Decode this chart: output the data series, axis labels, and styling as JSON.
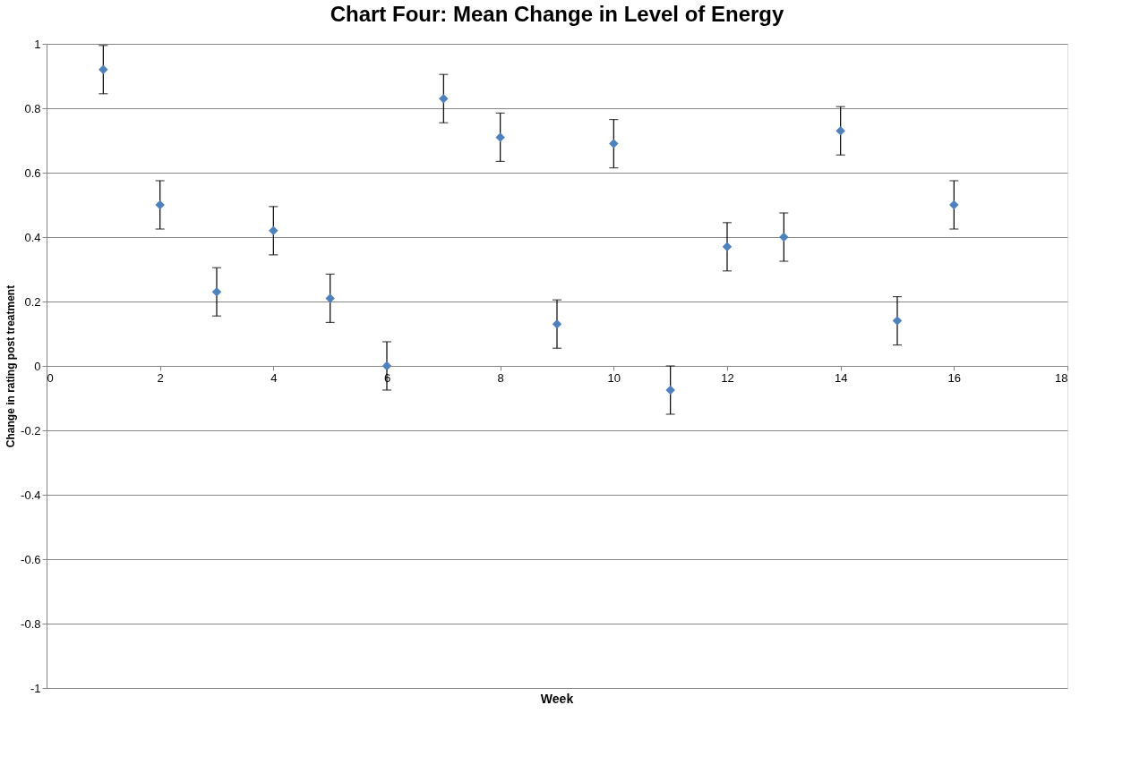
{
  "chart_data": {
    "type": "scatter",
    "title": "Chart Four: Mean Change in Level of Energy",
    "xlabel": "Week",
    "ylabel": "Change in rating post treatment",
    "x": [
      1,
      2,
      3,
      4,
      5,
      6,
      7,
      8,
      9,
      10,
      11,
      12,
      13,
      14,
      15,
      16
    ],
    "series": [
      {
        "color": "#4f81bd",
        "values": [
          0.92,
          0.5,
          0.23,
          0.42,
          0.21,
          0,
          0.83,
          0.71,
          0.13,
          0.69,
          -0.075,
          0.37,
          0.4,
          0.73,
          0.14,
          0.5
        ],
        "errors": [
          0.075,
          0.075,
          0.075,
          0.075,
          0.075,
          0.075,
          0.075,
          0.075,
          0.075,
          0.075,
          0.075,
          0.075,
          0.075,
          0.075,
          0.075,
          0.075
        ]
      }
    ],
    "xlim": [
      0,
      18
    ],
    "xticks": [
      0,
      2,
      4,
      6,
      8,
      10,
      12,
      14,
      16,
      18
    ],
    "ylim": [
      -1,
      1
    ],
    "yticks": [
      -1,
      -0.8,
      -0.6,
      -0.4,
      -0.2,
      0,
      0.2,
      0.4,
      0.6,
      0.8,
      1
    ],
    "grid": "y",
    "marker": "diamond",
    "legend": false
  }
}
